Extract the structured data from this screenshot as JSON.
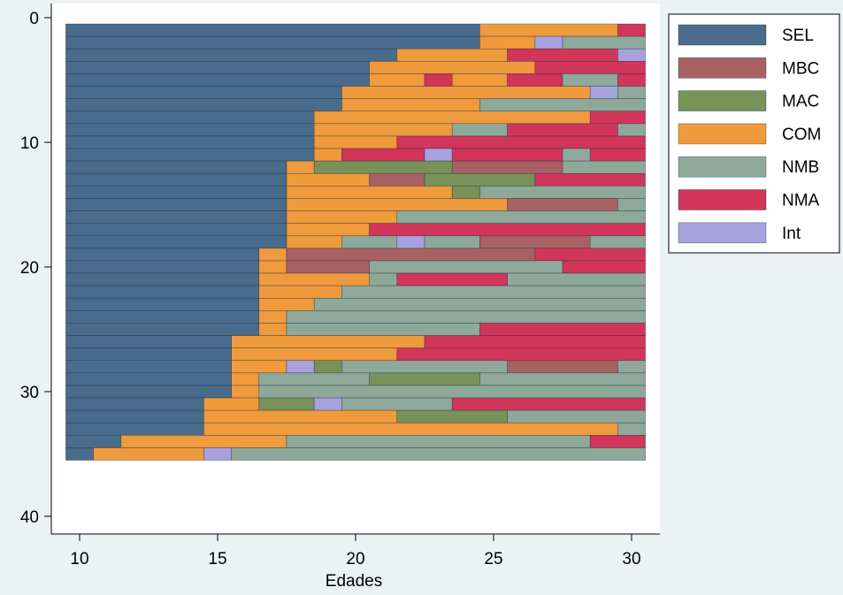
{
  "chart_data": {
    "type": "bar",
    "orientation": "horizontal-stacked-sequence",
    "xlabel": "Edades",
    "xticks": [
      "10",
      "15",
      "20",
      "25",
      "30"
    ],
    "yticks": [
      "0",
      "10",
      "20",
      "30",
      "40"
    ],
    "xlim": [
      9.5,
      30.5
    ],
    "ylim": [
      -0.5,
      40.5
    ],
    "y_direction": "down",
    "legend_position": "right",
    "states": [
      {
        "name": "SEL",
        "color": "#4a6c8c"
      },
      {
        "name": "MBC",
        "color": "#a86162"
      },
      {
        "name": "MAC",
        "color": "#78925a"
      },
      {
        "name": "COM",
        "color": "#ef9a3c"
      },
      {
        "name": "NMB",
        "color": "#8ea99a"
      },
      {
        "name": "NMA",
        "color": "#d1365a"
      },
      {
        "name": "Int",
        "color": "#a7a2dd"
      }
    ],
    "sequences": [
      {
        "id": 1,
        "segments": [
          [
            "SEL",
            9.5,
            24.5
          ],
          [
            "COM",
            24.5,
            29.5
          ],
          [
            "NMA",
            29.5,
            30.5
          ]
        ]
      },
      {
        "id": 2,
        "segments": [
          [
            "SEL",
            9.5,
            24.5
          ],
          [
            "COM",
            24.5,
            26.5
          ],
          [
            "Int",
            26.5,
            27.5
          ],
          [
            "NMB",
            27.5,
            30.5
          ]
        ]
      },
      {
        "id": 3,
        "segments": [
          [
            "SEL",
            9.5,
            21.5
          ],
          [
            "COM",
            21.5,
            25.5
          ],
          [
            "NMA",
            25.5,
            29.5
          ],
          [
            "Int",
            29.5,
            30.5
          ]
        ]
      },
      {
        "id": 4,
        "segments": [
          [
            "SEL",
            9.5,
            20.5
          ],
          [
            "COM",
            20.5,
            26.5
          ],
          [
            "NMA",
            26.5,
            30.5
          ]
        ]
      },
      {
        "id": 5,
        "segments": [
          [
            "SEL",
            9.5,
            20.5
          ],
          [
            "COM",
            20.5,
            22.5
          ],
          [
            "NMA",
            22.5,
            23.5
          ],
          [
            "COM",
            23.5,
            25.5
          ],
          [
            "NMA",
            25.5,
            27.5
          ],
          [
            "NMB",
            27.5,
            29.5
          ],
          [
            "NMA",
            29.5,
            30.5
          ]
        ]
      },
      {
        "id": 6,
        "segments": [
          [
            "SEL",
            9.5,
            19.5
          ],
          [
            "COM",
            19.5,
            28.5
          ],
          [
            "Int",
            28.5,
            29.5
          ],
          [
            "NMB",
            29.5,
            30.5
          ]
        ]
      },
      {
        "id": 7,
        "segments": [
          [
            "SEL",
            9.5,
            19.5
          ],
          [
            "COM",
            19.5,
            24.5
          ],
          [
            "NMB",
            24.5,
            30.5
          ]
        ]
      },
      {
        "id": 8,
        "segments": [
          [
            "SEL",
            9.5,
            18.5
          ],
          [
            "COM",
            18.5,
            28.5
          ],
          [
            "NMA",
            28.5,
            30.5
          ]
        ]
      },
      {
        "id": 9,
        "segments": [
          [
            "SEL",
            9.5,
            18.5
          ],
          [
            "COM",
            18.5,
            23.5
          ],
          [
            "NMB",
            23.5,
            25.5
          ],
          [
            "NMA",
            25.5,
            29.5
          ],
          [
            "NMB",
            29.5,
            30.5
          ]
        ]
      },
      {
        "id": 10,
        "segments": [
          [
            "SEL",
            9.5,
            18.5
          ],
          [
            "COM",
            18.5,
            21.5
          ],
          [
            "NMA",
            21.5,
            30.5
          ]
        ]
      },
      {
        "id": 11,
        "segments": [
          [
            "SEL",
            9.5,
            18.5
          ],
          [
            "COM",
            18.5,
            19.5
          ],
          [
            "NMA",
            19.5,
            22.5
          ],
          [
            "Int",
            22.5,
            23.5
          ],
          [
            "NMA",
            23.5,
            27.5
          ],
          [
            "NMB",
            27.5,
            28.5
          ],
          [
            "NMA",
            28.5,
            30.5
          ]
        ]
      },
      {
        "id": 12,
        "segments": [
          [
            "SEL",
            9.5,
            17.5
          ],
          [
            "COM",
            17.5,
            18.5
          ],
          [
            "MAC",
            18.5,
            23.5
          ],
          [
            "MBC",
            23.5,
            27.5
          ],
          [
            "NMB",
            27.5,
            30.5
          ]
        ]
      },
      {
        "id": 13,
        "segments": [
          [
            "SEL",
            9.5,
            17.5
          ],
          [
            "COM",
            17.5,
            20.5
          ],
          [
            "MBC",
            20.5,
            22.5
          ],
          [
            "MAC",
            22.5,
            26.5
          ],
          [
            "NMA",
            26.5,
            30.5
          ]
        ]
      },
      {
        "id": 14,
        "segments": [
          [
            "SEL",
            9.5,
            17.5
          ],
          [
            "COM",
            17.5,
            23.5
          ],
          [
            "MAC",
            23.5,
            24.5
          ],
          [
            "NMB",
            24.5,
            30.5
          ]
        ]
      },
      {
        "id": 15,
        "segments": [
          [
            "SEL",
            9.5,
            17.5
          ],
          [
            "COM",
            17.5,
            25.5
          ],
          [
            "MBC",
            25.5,
            29.5
          ],
          [
            "NMB",
            29.5,
            30.5
          ]
        ]
      },
      {
        "id": 16,
        "segments": [
          [
            "SEL",
            9.5,
            17.5
          ],
          [
            "COM",
            17.5,
            21.5
          ],
          [
            "NMB",
            21.5,
            30.5
          ]
        ]
      },
      {
        "id": 17,
        "segments": [
          [
            "SEL",
            9.5,
            17.5
          ],
          [
            "COM",
            17.5,
            20.5
          ],
          [
            "NMA",
            20.5,
            30.5
          ]
        ]
      },
      {
        "id": 18,
        "segments": [
          [
            "SEL",
            9.5,
            17.5
          ],
          [
            "COM",
            17.5,
            19.5
          ],
          [
            "NMB",
            19.5,
            21.5
          ],
          [
            "Int",
            21.5,
            22.5
          ],
          [
            "NMB",
            22.5,
            24.5
          ],
          [
            "MBC",
            24.5,
            28.5
          ],
          [
            "NMB",
            28.5,
            30.5
          ]
        ]
      },
      {
        "id": 19,
        "segments": [
          [
            "SEL",
            9.5,
            16.5
          ],
          [
            "COM",
            16.5,
            17.5
          ],
          [
            "MBC",
            17.5,
            26.5
          ],
          [
            "NMA",
            26.5,
            30.5
          ]
        ]
      },
      {
        "id": 20,
        "segments": [
          [
            "SEL",
            9.5,
            16.5
          ],
          [
            "COM",
            16.5,
            17.5
          ],
          [
            "MBC",
            17.5,
            20.5
          ],
          [
            "NMB",
            20.5,
            27.5
          ],
          [
            "NMA",
            27.5,
            30.5
          ]
        ]
      },
      {
        "id": 21,
        "segments": [
          [
            "SEL",
            9.5,
            16.5
          ],
          [
            "COM",
            16.5,
            20.5
          ],
          [
            "NMB",
            20.5,
            21.5
          ],
          [
            "NMA",
            21.5,
            25.5
          ],
          [
            "NMB",
            25.5,
            30.5
          ]
        ]
      },
      {
        "id": 22,
        "segments": [
          [
            "SEL",
            9.5,
            16.5
          ],
          [
            "COM",
            16.5,
            19.5
          ],
          [
            "NMB",
            19.5,
            30.5
          ]
        ]
      },
      {
        "id": 23,
        "segments": [
          [
            "SEL",
            9.5,
            16.5
          ],
          [
            "COM",
            16.5,
            18.5
          ],
          [
            "NMB",
            18.5,
            30.5
          ]
        ]
      },
      {
        "id": 24,
        "segments": [
          [
            "SEL",
            9.5,
            16.5
          ],
          [
            "COM",
            16.5,
            17.5
          ],
          [
            "NMB",
            17.5,
            30.5
          ]
        ]
      },
      {
        "id": 25,
        "segments": [
          [
            "SEL",
            9.5,
            16.5
          ],
          [
            "COM",
            16.5,
            17.5
          ],
          [
            "NMB",
            17.5,
            24.5
          ],
          [
            "NMA",
            24.5,
            30.5
          ]
        ]
      },
      {
        "id": 26,
        "segments": [
          [
            "SEL",
            9.5,
            15.5
          ],
          [
            "COM",
            15.5,
            22.5
          ],
          [
            "NMA",
            22.5,
            30.5
          ]
        ]
      },
      {
        "id": 27,
        "segments": [
          [
            "SEL",
            9.5,
            15.5
          ],
          [
            "COM",
            15.5,
            21.5
          ],
          [
            "NMA",
            21.5,
            30.5
          ]
        ]
      },
      {
        "id": 28,
        "segments": [
          [
            "SEL",
            9.5,
            15.5
          ],
          [
            "COM",
            15.5,
            17.5
          ],
          [
            "Int",
            17.5,
            18.5
          ],
          [
            "MAC",
            18.5,
            19.5
          ],
          [
            "NMB",
            19.5,
            25.5
          ],
          [
            "MBC",
            25.5,
            29.5
          ],
          [
            "NMB",
            29.5,
            30.5
          ]
        ]
      },
      {
        "id": 29,
        "segments": [
          [
            "SEL",
            9.5,
            15.5
          ],
          [
            "COM",
            15.5,
            16.5
          ],
          [
            "NMB",
            16.5,
            20.5
          ],
          [
            "MAC",
            20.5,
            24.5
          ],
          [
            "NMB",
            24.5,
            30.5
          ]
        ]
      },
      {
        "id": 30,
        "segments": [
          [
            "SEL",
            9.5,
            15.5
          ],
          [
            "COM",
            15.5,
            16.5
          ],
          [
            "NMB",
            16.5,
            30.5
          ]
        ]
      },
      {
        "id": 31,
        "segments": [
          [
            "SEL",
            9.5,
            14.5
          ],
          [
            "COM",
            14.5,
            16.5
          ],
          [
            "MAC",
            16.5,
            18.5
          ],
          [
            "Int",
            18.5,
            19.5
          ],
          [
            "NMB",
            19.5,
            23.5
          ],
          [
            "NMA",
            23.5,
            30.5
          ]
        ]
      },
      {
        "id": 32,
        "segments": [
          [
            "SEL",
            9.5,
            14.5
          ],
          [
            "COM",
            14.5,
            21.5
          ],
          [
            "MAC",
            21.5,
            25.5
          ],
          [
            "NMB",
            25.5,
            30.5
          ]
        ]
      },
      {
        "id": 33,
        "segments": [
          [
            "SEL",
            9.5,
            14.5
          ],
          [
            "COM",
            14.5,
            29.5
          ],
          [
            "NMB",
            29.5,
            30.5
          ]
        ]
      },
      {
        "id": 34,
        "segments": [
          [
            "SEL",
            9.5,
            11.5
          ],
          [
            "COM",
            11.5,
            17.5
          ],
          [
            "NMB",
            17.5,
            28.5
          ],
          [
            "NMA",
            28.5,
            30.5
          ]
        ]
      },
      {
        "id": 35,
        "segments": [
          [
            "SEL",
            9.5,
            10.5
          ],
          [
            "COM",
            10.5,
            14.5
          ],
          [
            "Int",
            14.5,
            15.5
          ],
          [
            "NMB",
            15.5,
            30.5
          ]
        ]
      }
    ]
  }
}
